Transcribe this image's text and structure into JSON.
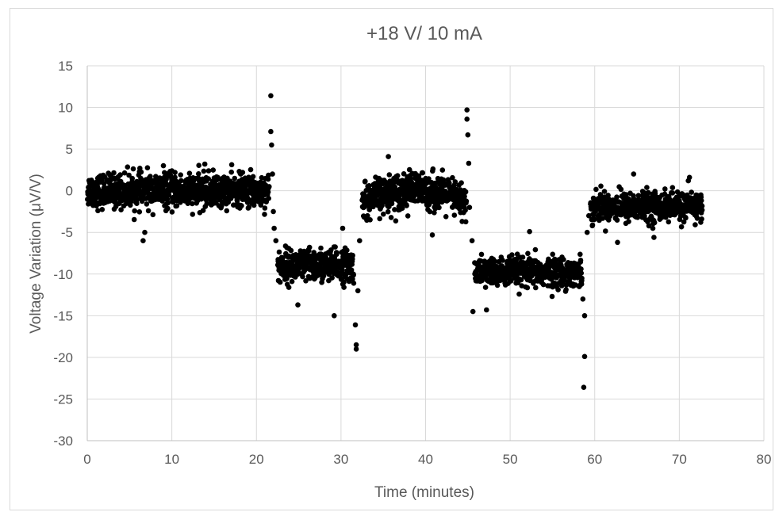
{
  "chart_data": {
    "type": "scatter",
    "title": "+18 V/ 10 mA",
    "xlabel": "Time (minutes)",
    "ylabel": "Voltage Variation (μV/V)",
    "xlim": [
      0,
      80
    ],
    "ylim": [
      -30,
      15
    ],
    "xticks": [
      0,
      10,
      20,
      30,
      40,
      50,
      60,
      70,
      80
    ],
    "yticks": [
      15,
      10,
      5,
      0,
      -5,
      -10,
      -15,
      -20,
      -25,
      -30
    ],
    "grid": true,
    "legend": "none",
    "marker_color": "#000000",
    "segments": [
      {
        "x_start": 0.0,
        "x_end": 21.5,
        "mean": 0.0,
        "spread": 1.6
      },
      {
        "x_start": 22.5,
        "x_end": 31.5,
        "mean": -9.0,
        "spread": 1.6
      },
      {
        "x_start": 32.5,
        "x_end": 44.8,
        "mean": -0.6,
        "spread": 1.7
      },
      {
        "x_start": 45.8,
        "x_end": 58.5,
        "mean": -9.8,
        "spread": 1.4
      },
      {
        "x_start": 59.5,
        "x_end": 72.7,
        "mean": -1.9,
        "spread": 1.4
      }
    ],
    "points": [
      {
        "x": 21.7,
        "y": 11.4
      },
      {
        "x": 21.7,
        "y": 7.1
      },
      {
        "x": 21.8,
        "y": 5.5
      },
      {
        "x": 21.9,
        "y": 2.0
      },
      {
        "x": 22.0,
        "y": -2.5
      },
      {
        "x": 22.1,
        "y": -4.5
      },
      {
        "x": 22.3,
        "y": -6.0
      },
      {
        "x": 31.7,
        "y": -16.1
      },
      {
        "x": 31.8,
        "y": -18.5
      },
      {
        "x": 31.8,
        "y": -19.0
      },
      {
        "x": 32.0,
        "y": -12.0
      },
      {
        "x": 32.2,
        "y": -6.0
      },
      {
        "x": 44.9,
        "y": 9.7
      },
      {
        "x": 44.9,
        "y": 8.6
      },
      {
        "x": 45.0,
        "y": 6.7
      },
      {
        "x": 45.1,
        "y": 3.3
      },
      {
        "x": 45.2,
        "y": -2.0
      },
      {
        "x": 45.5,
        "y": -6.0
      },
      {
        "x": 45.6,
        "y": -14.5
      },
      {
        "x": 47.2,
        "y": -14.3
      },
      {
        "x": 52.3,
        "y": -4.9
      },
      {
        "x": 58.8,
        "y": -15.0
      },
      {
        "x": 58.8,
        "y": -19.9
      },
      {
        "x": 58.7,
        "y": -23.6
      },
      {
        "x": 58.6,
        "y": -13.0
      },
      {
        "x": 59.1,
        "y": -5.0
      },
      {
        "x": 59.3,
        "y": -3.0
      },
      {
        "x": 6.6,
        "y": -6.0
      },
      {
        "x": 6.8,
        "y": -5.0
      },
      {
        "x": 29.2,
        "y": -15.0
      },
      {
        "x": 24.9,
        "y": -13.7
      },
      {
        "x": 30.2,
        "y": -4.5
      },
      {
        "x": 35.6,
        "y": 4.1
      },
      {
        "x": 40.8,
        "y": -5.3
      },
      {
        "x": 62.7,
        "y": -6.2
      },
      {
        "x": 67.0,
        "y": -5.6
      },
      {
        "x": 71.2,
        "y": 1.6
      },
      {
        "x": 13.9,
        "y": 3.2
      },
      {
        "x": 9.0,
        "y": 3.0
      },
      {
        "x": 64.6,
        "y": 2.0
      }
    ]
  }
}
